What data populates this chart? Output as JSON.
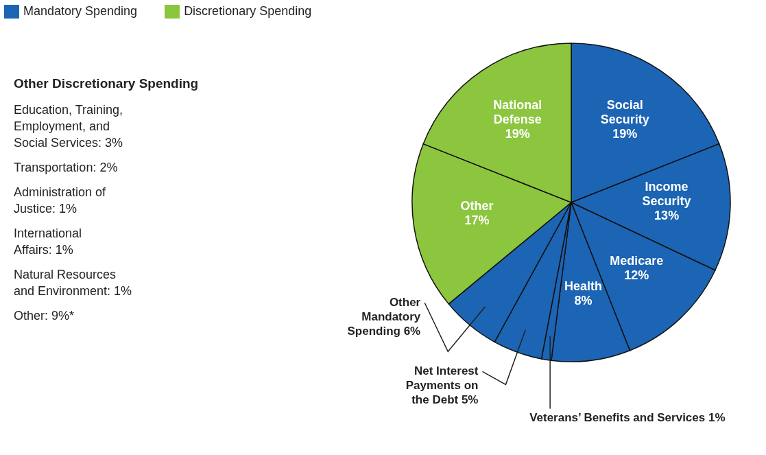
{
  "chart_data": {
    "type": "pie",
    "categories": [
      "Social Security",
      "Income Security",
      "Medicare",
      "Health",
      "Veterans’ Benefits and Services",
      "Net Interest Payments on the Debt",
      "Other Mandatory Spending",
      "Other",
      "National Defense"
    ],
    "values": [
      19,
      13,
      12,
      8,
      1,
      5,
      6,
      17,
      19
    ],
    "colors": [
      "#1c64b4",
      "#1c64b4",
      "#1c64b4",
      "#1c64b4",
      "#1c64b4",
      "#1c64b4",
      "#1c64b4",
      "#8cc63f",
      "#8cc63f"
    ],
    "value_labels": [
      "19%",
      "13%",
      "12%",
      "8%",
      "1%",
      "5%",
      "6%",
      "17%",
      "19%"
    ],
    "annotations": [
      "Mandatory Spending",
      "Discretionary Spending",
      "Other Discretionary Spending",
      "Education, Training, Employment, and Social Services: 3%",
      "Transportation: 2%",
      "Administration of Justice: 1%",
      "International Affairs: 1%",
      "Natural Resources and Environment: 1%",
      "Other: 9%*"
    ]
  }
}
